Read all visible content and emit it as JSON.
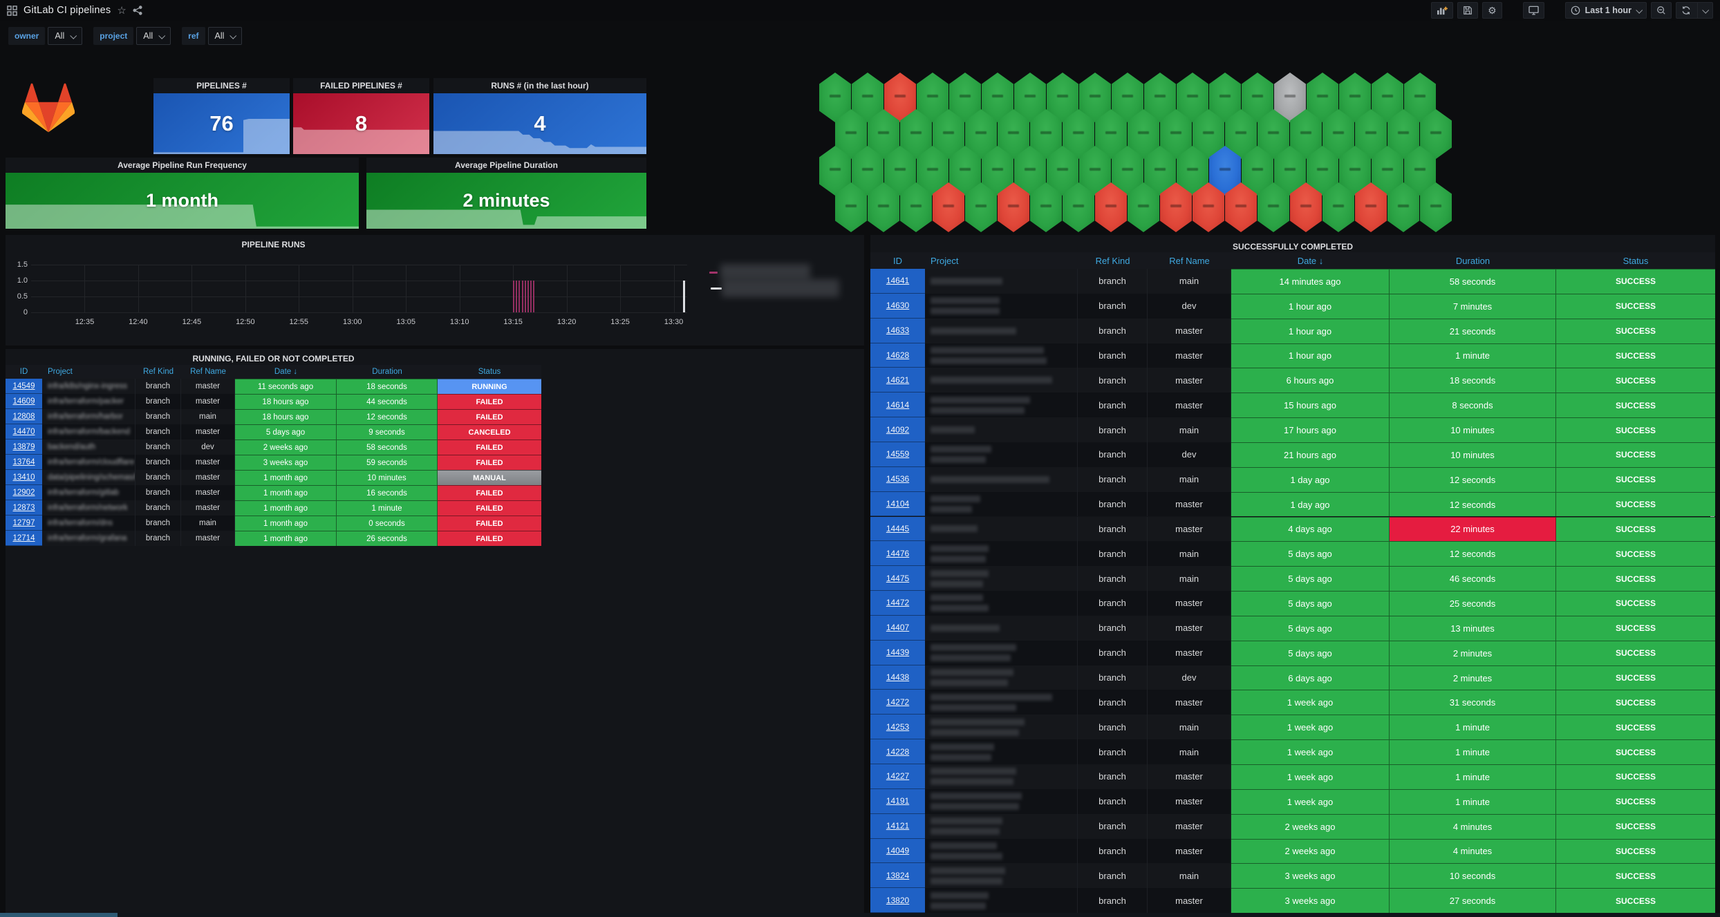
{
  "header": {
    "title": "GitLab CI pipelines",
    "time_range": "Last 1 hour"
  },
  "filters": [
    {
      "label": "owner",
      "value": "All"
    },
    {
      "label": "project",
      "value": "All"
    },
    {
      "label": "ref",
      "value": "All"
    }
  ],
  "stats": [
    {
      "title": "PIPELINES #",
      "value": "76",
      "color": "blue"
    },
    {
      "title": "FAILED PIPELINES #",
      "value": "8",
      "color": "red"
    },
    {
      "title": "RUNS # (in the last hour)",
      "value": "4",
      "color": "blue"
    },
    {
      "title": "Average Pipeline Run Frequency",
      "value": "1 month",
      "color": "green"
    },
    {
      "title": "Average Pipeline Duration",
      "value": "2 minutes",
      "color": "green"
    }
  ],
  "honeycomb": {
    "color_map": {
      "g": "green",
      "r": "red",
      "b": "blue",
      "s": "gray"
    },
    "rows": [
      [
        "g",
        "g",
        "r",
        "g",
        "g",
        "g",
        "g",
        "g",
        "g",
        "g",
        "g",
        "g",
        "g",
        "g",
        "s",
        "g",
        "g",
        "g",
        "g"
      ],
      [
        "g",
        "g",
        "g",
        "g",
        "g",
        "g",
        "g",
        "g",
        "g",
        "g",
        "g",
        "g",
        "g",
        "g",
        "g",
        "g",
        "g",
        "g",
        "g"
      ],
      [
        "g",
        "g",
        "g",
        "g",
        "g",
        "g",
        "g",
        "g",
        "g",
        "g",
        "g",
        "g",
        "b",
        "g",
        "g",
        "g",
        "g",
        "g",
        "g"
      ],
      [
        "g",
        "g",
        "g",
        "r",
        "g",
        "r",
        "g",
        "g",
        "r",
        "g",
        "r",
        "r",
        "r",
        "g",
        "r",
        "g",
        "r",
        "g",
        "g"
      ]
    ]
  },
  "chart_data": {
    "type": "bar",
    "title": "PIPELINE RUNS",
    "ylim": [
      0,
      1.5
    ],
    "yticks": [
      "1.5",
      "1.0",
      "0.5",
      "0"
    ],
    "xticks": [
      "12:35",
      "12:40",
      "12:45",
      "12:50",
      "12:55",
      "13:00",
      "13:05",
      "13:10",
      "13:15",
      "13:20",
      "13:25",
      "13:30"
    ],
    "grid": true,
    "legend_position": "right",
    "series": [
      {
        "name": "(redacted)",
        "color": "#a23269",
        "points": [
          {
            "x": "13:15",
            "y": 1
          },
          {
            "x": "13:16",
            "y": 1
          },
          {
            "x": "13:17",
            "y": 1
          }
        ]
      },
      {
        "name": "(redacted)",
        "color": "#dcdee2",
        "points": [
          {
            "x": "13:31",
            "y": 1
          }
        ]
      }
    ]
  },
  "running_table": {
    "title": "RUNNING, FAILED OR NOT COMPLETED",
    "columns": [
      "ID",
      "Project",
      "Ref Kind",
      "Ref Name",
      "Date ↓",
      "Duration",
      "Status"
    ],
    "rows": [
      {
        "id": "14549",
        "project": "infra/k8s/nginx-ingress",
        "ref_kind": "branch",
        "ref_name": "master",
        "date": "11 seconds ago",
        "duration": "18 seconds",
        "status": "RUNNING"
      },
      {
        "id": "14609",
        "project": "infra/terraform/packer",
        "ref_kind": "branch",
        "ref_name": "master",
        "date": "18 hours ago",
        "duration": "44 seconds",
        "status": "FAILED"
      },
      {
        "id": "12808",
        "project": "infra/terraform/harbor",
        "ref_kind": "branch",
        "ref_name": "main",
        "date": "18 hours ago",
        "duration": "12 seconds",
        "status": "FAILED"
      },
      {
        "id": "14470",
        "project": "infra/terraform/backend",
        "ref_kind": "branch",
        "ref_name": "master",
        "date": "5 days ago",
        "duration": "9 seconds",
        "status": "CANCELED"
      },
      {
        "id": "13879",
        "project": "backend/auth",
        "ref_kind": "branch",
        "ref_name": "dev",
        "date": "2 weeks ago",
        "duration": "58 seconds",
        "status": "FAILED"
      },
      {
        "id": "13764",
        "project": "infra/terraform/cloudflare",
        "ref_kind": "branch",
        "ref_name": "master",
        "date": "3 weeks ago",
        "duration": "59 seconds",
        "status": "FAILED"
      },
      {
        "id": "13410",
        "project": "data/pipelining/schemas/bq-st...",
        "ref_kind": "branch",
        "ref_name": "master",
        "date": "1 month ago",
        "duration": "10 minutes",
        "status": "MANUAL"
      },
      {
        "id": "12902",
        "project": "infra/terraform/gitlab",
        "ref_kind": "branch",
        "ref_name": "master",
        "date": "1 month ago",
        "duration": "16 seconds",
        "status": "FAILED"
      },
      {
        "id": "12873",
        "project": "infra/terraform/network",
        "ref_kind": "branch",
        "ref_name": "master",
        "date": "1 month ago",
        "duration": "1 minute",
        "status": "FAILED"
      },
      {
        "id": "12797",
        "project": "infra/terraform/dns",
        "ref_kind": "branch",
        "ref_name": "main",
        "date": "1 month ago",
        "duration": "0 seconds",
        "status": "FAILED"
      },
      {
        "id": "12714",
        "project": "infra/terraform/grafana",
        "ref_kind": "branch",
        "ref_name": "master",
        "date": "1 month ago",
        "duration": "26 seconds",
        "status": "FAILED"
      }
    ]
  },
  "completed_table": {
    "title": "SUCCESSFULLY COMPLETED",
    "columns": [
      "ID",
      "Project",
      "Ref Kind",
      "Ref Name",
      "Date ↓",
      "Duration",
      "Status"
    ],
    "rows": [
      {
        "id": "14641",
        "bars": [
          52
        ],
        "ref_kind": "branch",
        "ref_name": "main",
        "date": "14 minutes ago",
        "duration": "58 seconds",
        "status": "SUCCESS"
      },
      {
        "id": "14630",
        "bars": [
          50,
          50
        ],
        "ref_kind": "branch",
        "ref_name": "dev",
        "date": "1 hour ago",
        "duration": "7 minutes",
        "status": "SUCCESS"
      },
      {
        "id": "14633",
        "bars": [
          62
        ],
        "ref_kind": "branch",
        "ref_name": "master",
        "date": "1 hour ago",
        "duration": "21 seconds",
        "status": "SUCCESS"
      },
      {
        "id": "14628",
        "bars": [
          82,
          84
        ],
        "ref_kind": "branch",
        "ref_name": "master",
        "date": "1 hour ago",
        "duration": "1 minute",
        "status": "SUCCESS"
      },
      {
        "id": "14621",
        "bars": [
          88
        ],
        "ref_kind": "branch",
        "ref_name": "master",
        "date": "6 hours ago",
        "duration": "18 seconds",
        "status": "SUCCESS"
      },
      {
        "id": "14614",
        "bars": [
          72,
          68
        ],
        "ref_kind": "branch",
        "ref_name": "master",
        "date": "15 hours ago",
        "duration": "8 seconds",
        "status": "SUCCESS"
      },
      {
        "id": "14092",
        "bars": [
          32
        ],
        "ref_kind": "branch",
        "ref_name": "main",
        "date": "17 hours ago",
        "duration": "10 minutes",
        "status": "SUCCESS"
      },
      {
        "id": "14559",
        "bars": [
          44,
          40
        ],
        "ref_kind": "branch",
        "ref_name": "dev",
        "date": "21 hours ago",
        "duration": "10 minutes",
        "status": "SUCCESS"
      },
      {
        "id": "14536",
        "bars": [
          86
        ],
        "ref_kind": "branch",
        "ref_name": "main",
        "date": "1 day ago",
        "duration": "12 seconds",
        "status": "SUCCESS"
      },
      {
        "id": "14104",
        "bars": [
          36,
          30
        ],
        "ref_kind": "branch",
        "ref_name": "master",
        "date": "1 day ago",
        "duration": "12 seconds",
        "status": "SUCCESS"
      },
      {
        "id": "14445",
        "bars": [
          34
        ],
        "ref_kind": "branch",
        "ref_name": "master",
        "date": "4 days ago",
        "duration": "22 minutes",
        "status": "SUCCESS",
        "duration_alert": true
      },
      {
        "id": "14476",
        "bars": [
          42,
          40
        ],
        "ref_kind": "branch",
        "ref_name": "main",
        "date": "5 days ago",
        "duration": "12 seconds",
        "status": "SUCCESS"
      },
      {
        "id": "14475",
        "bars": [
          42,
          38
        ],
        "ref_kind": "branch",
        "ref_name": "main",
        "date": "5 days ago",
        "duration": "46 seconds",
        "status": "SUCCESS"
      },
      {
        "id": "14472",
        "bars": [
          38,
          42
        ],
        "ref_kind": "branch",
        "ref_name": "master",
        "date": "5 days ago",
        "duration": "25 seconds",
        "status": "SUCCESS"
      },
      {
        "id": "14407",
        "bars": [
          50
        ],
        "ref_kind": "branch",
        "ref_name": "master",
        "date": "5 days ago",
        "duration": "13 minutes",
        "status": "SUCCESS"
      },
      {
        "id": "14439",
        "bars": [
          62,
          58
        ],
        "ref_kind": "branch",
        "ref_name": "master",
        "date": "5 days ago",
        "duration": "2 minutes",
        "status": "SUCCESS"
      },
      {
        "id": "14438",
        "bars": [
          60,
          56
        ],
        "ref_kind": "branch",
        "ref_name": "dev",
        "date": "6 days ago",
        "duration": "2 minutes",
        "status": "SUCCESS"
      },
      {
        "id": "14272",
        "bars": [
          88,
          62
        ],
        "ref_kind": "branch",
        "ref_name": "master",
        "date": "1 week ago",
        "duration": "31 seconds",
        "status": "SUCCESS"
      },
      {
        "id": "14253",
        "bars": [
          68,
          64
        ],
        "ref_kind": "branch",
        "ref_name": "main",
        "date": "1 week ago",
        "duration": "1 minute",
        "status": "SUCCESS"
      },
      {
        "id": "14228",
        "bars": [
          46,
          44
        ],
        "ref_kind": "branch",
        "ref_name": "main",
        "date": "1 week ago",
        "duration": "1 minute",
        "status": "SUCCESS"
      },
      {
        "id": "14227",
        "bars": [
          62,
          60
        ],
        "ref_kind": "branch",
        "ref_name": "master",
        "date": "1 week ago",
        "duration": "1 minute",
        "status": "SUCCESS"
      },
      {
        "id": "14191",
        "bars": [
          66,
          64
        ],
        "ref_kind": "branch",
        "ref_name": "master",
        "date": "1 week ago",
        "duration": "1 minute",
        "status": "SUCCESS"
      },
      {
        "id": "14121",
        "bars": [
          52,
          50
        ],
        "ref_kind": "branch",
        "ref_name": "master",
        "date": "2 weeks ago",
        "duration": "4 minutes",
        "status": "SUCCESS"
      },
      {
        "id": "14049",
        "bars": [
          48,
          52
        ],
        "ref_kind": "branch",
        "ref_name": "master",
        "date": "2 weeks ago",
        "duration": "4 minutes",
        "status": "SUCCESS"
      },
      {
        "id": "13824",
        "bars": [
          54,
          52
        ],
        "ref_kind": "branch",
        "ref_name": "main",
        "date": "3 weeks ago",
        "duration": "10 seconds",
        "status": "SUCCESS"
      },
      {
        "id": "13820",
        "bars": [
          42,
          40
        ],
        "ref_kind": "branch",
        "ref_name": "master",
        "date": "3 weeks ago",
        "duration": "27 seconds",
        "status": "SUCCESS"
      }
    ]
  },
  "colors": {
    "green_cell": "#2cb04c",
    "red_cell": "#e51c40",
    "id_cell": "#1f61c5",
    "header_text": "#3fa9e1",
    "status_colors": {
      "RUNNING": "#5794f2",
      "FAILED": "#e02940",
      "CANCELED": "#e02940",
      "MANUAL": "linear-gradient(180deg,#9a9da1,#7e8185)",
      "SUCCESS": "#2cb04c"
    }
  }
}
